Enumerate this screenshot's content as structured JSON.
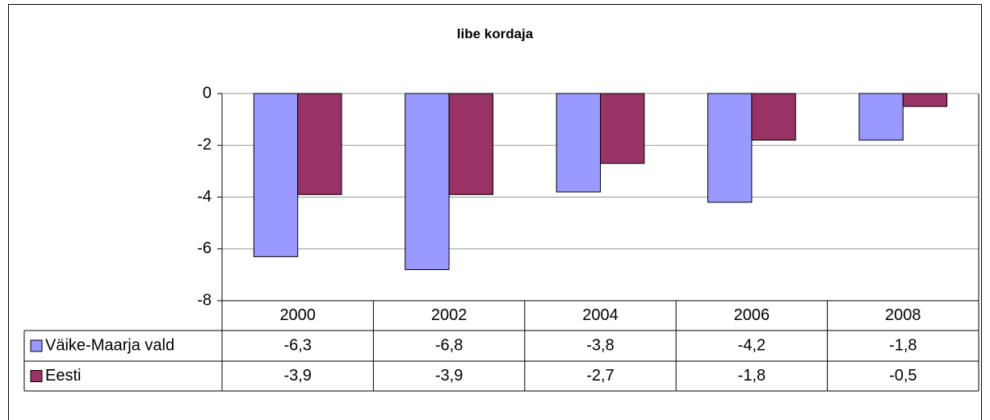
{
  "chart_data": {
    "type": "bar",
    "title": "libe kordaja",
    "categories": [
      "2000",
      "2002",
      "2004",
      "2006",
      "2008"
    ],
    "series": [
      {
        "name": "Väike-Maarja vald",
        "color": "#9999ff",
        "values": [
          -6.3,
          -6.8,
          -3.8,
          -4.2,
          -1.8
        ],
        "value_labels": [
          "-6,3",
          "-6,8",
          "-3,8",
          "-4,2",
          "-1,8"
        ]
      },
      {
        "name": "Eesti",
        "color": "#993366",
        "values": [
          -3.9,
          -3.9,
          -2.7,
          -1.8,
          -0.5
        ],
        "value_labels": [
          "-3,9",
          "-3,9",
          "-2,7",
          "-1,8",
          "-0,5"
        ]
      }
    ],
    "ylim": [
      -8,
      0
    ],
    "yticks": [
      0,
      -2,
      -4,
      -6,
      -8
    ],
    "grid": true
  }
}
